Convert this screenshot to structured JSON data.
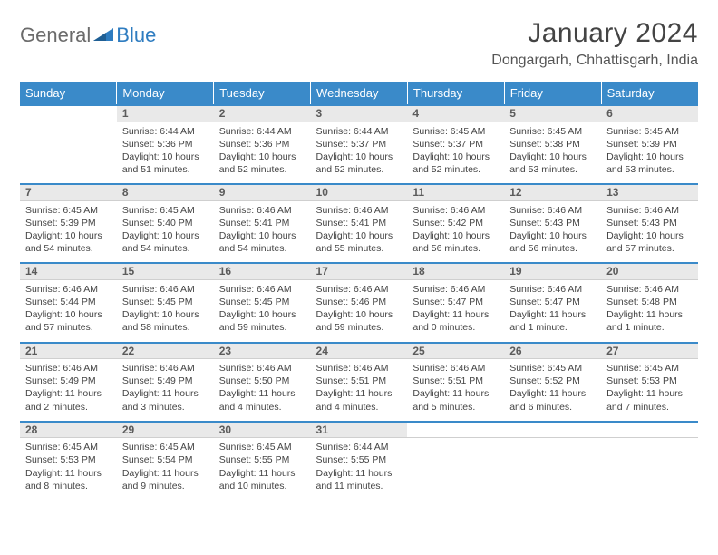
{
  "logo": {
    "text1": "General",
    "text2": "Blue"
  },
  "title": "January 2024",
  "location": "Dongargarh, Chhattisgarh, India",
  "colors": {
    "header_bg": "#3a8ac9",
    "header_text": "#ffffff",
    "daynum_bg": "#e9e9e9",
    "daynum_border_top": "#3a8ac9",
    "text": "#444444",
    "logo_blue": "#2e7cc0"
  },
  "weekdays": [
    "Sunday",
    "Monday",
    "Tuesday",
    "Wednesday",
    "Thursday",
    "Friday",
    "Saturday"
  ],
  "weeks": [
    [
      null,
      {
        "n": "1",
        "sr": "6:44 AM",
        "ss": "5:36 PM",
        "dl": "10 hours and 51 minutes."
      },
      {
        "n": "2",
        "sr": "6:44 AM",
        "ss": "5:36 PM",
        "dl": "10 hours and 52 minutes."
      },
      {
        "n": "3",
        "sr": "6:44 AM",
        "ss": "5:37 PM",
        "dl": "10 hours and 52 minutes."
      },
      {
        "n": "4",
        "sr": "6:45 AM",
        "ss": "5:37 PM",
        "dl": "10 hours and 52 minutes."
      },
      {
        "n": "5",
        "sr": "6:45 AM",
        "ss": "5:38 PM",
        "dl": "10 hours and 53 minutes."
      },
      {
        "n": "6",
        "sr": "6:45 AM",
        "ss": "5:39 PM",
        "dl": "10 hours and 53 minutes."
      }
    ],
    [
      {
        "n": "7",
        "sr": "6:45 AM",
        "ss": "5:39 PM",
        "dl": "10 hours and 54 minutes."
      },
      {
        "n": "8",
        "sr": "6:45 AM",
        "ss": "5:40 PM",
        "dl": "10 hours and 54 minutes."
      },
      {
        "n": "9",
        "sr": "6:46 AM",
        "ss": "5:41 PM",
        "dl": "10 hours and 54 minutes."
      },
      {
        "n": "10",
        "sr": "6:46 AM",
        "ss": "5:41 PM",
        "dl": "10 hours and 55 minutes."
      },
      {
        "n": "11",
        "sr": "6:46 AM",
        "ss": "5:42 PM",
        "dl": "10 hours and 56 minutes."
      },
      {
        "n": "12",
        "sr": "6:46 AM",
        "ss": "5:43 PM",
        "dl": "10 hours and 56 minutes."
      },
      {
        "n": "13",
        "sr": "6:46 AM",
        "ss": "5:43 PM",
        "dl": "10 hours and 57 minutes."
      }
    ],
    [
      {
        "n": "14",
        "sr": "6:46 AM",
        "ss": "5:44 PM",
        "dl": "10 hours and 57 minutes."
      },
      {
        "n": "15",
        "sr": "6:46 AM",
        "ss": "5:45 PM",
        "dl": "10 hours and 58 minutes."
      },
      {
        "n": "16",
        "sr": "6:46 AM",
        "ss": "5:45 PM",
        "dl": "10 hours and 59 minutes."
      },
      {
        "n": "17",
        "sr": "6:46 AM",
        "ss": "5:46 PM",
        "dl": "10 hours and 59 minutes."
      },
      {
        "n": "18",
        "sr": "6:46 AM",
        "ss": "5:47 PM",
        "dl": "11 hours and 0 minutes."
      },
      {
        "n": "19",
        "sr": "6:46 AM",
        "ss": "5:47 PM",
        "dl": "11 hours and 1 minute."
      },
      {
        "n": "20",
        "sr": "6:46 AM",
        "ss": "5:48 PM",
        "dl": "11 hours and 1 minute."
      }
    ],
    [
      {
        "n": "21",
        "sr": "6:46 AM",
        "ss": "5:49 PM",
        "dl": "11 hours and 2 minutes."
      },
      {
        "n": "22",
        "sr": "6:46 AM",
        "ss": "5:49 PM",
        "dl": "11 hours and 3 minutes."
      },
      {
        "n": "23",
        "sr": "6:46 AM",
        "ss": "5:50 PM",
        "dl": "11 hours and 4 minutes."
      },
      {
        "n": "24",
        "sr": "6:46 AM",
        "ss": "5:51 PM",
        "dl": "11 hours and 4 minutes."
      },
      {
        "n": "25",
        "sr": "6:46 AM",
        "ss": "5:51 PM",
        "dl": "11 hours and 5 minutes."
      },
      {
        "n": "26",
        "sr": "6:45 AM",
        "ss": "5:52 PM",
        "dl": "11 hours and 6 minutes."
      },
      {
        "n": "27",
        "sr": "6:45 AM",
        "ss": "5:53 PM",
        "dl": "11 hours and 7 minutes."
      }
    ],
    [
      {
        "n": "28",
        "sr": "6:45 AM",
        "ss": "5:53 PM",
        "dl": "11 hours and 8 minutes."
      },
      {
        "n": "29",
        "sr": "6:45 AM",
        "ss": "5:54 PM",
        "dl": "11 hours and 9 minutes."
      },
      {
        "n": "30",
        "sr": "6:45 AM",
        "ss": "5:55 PM",
        "dl": "11 hours and 10 minutes."
      },
      {
        "n": "31",
        "sr": "6:44 AM",
        "ss": "5:55 PM",
        "dl": "11 hours and 11 minutes."
      },
      null,
      null,
      null
    ]
  ],
  "labels": {
    "sunrise": "Sunrise:",
    "sunset": "Sunset:",
    "daylight": "Daylight:"
  }
}
